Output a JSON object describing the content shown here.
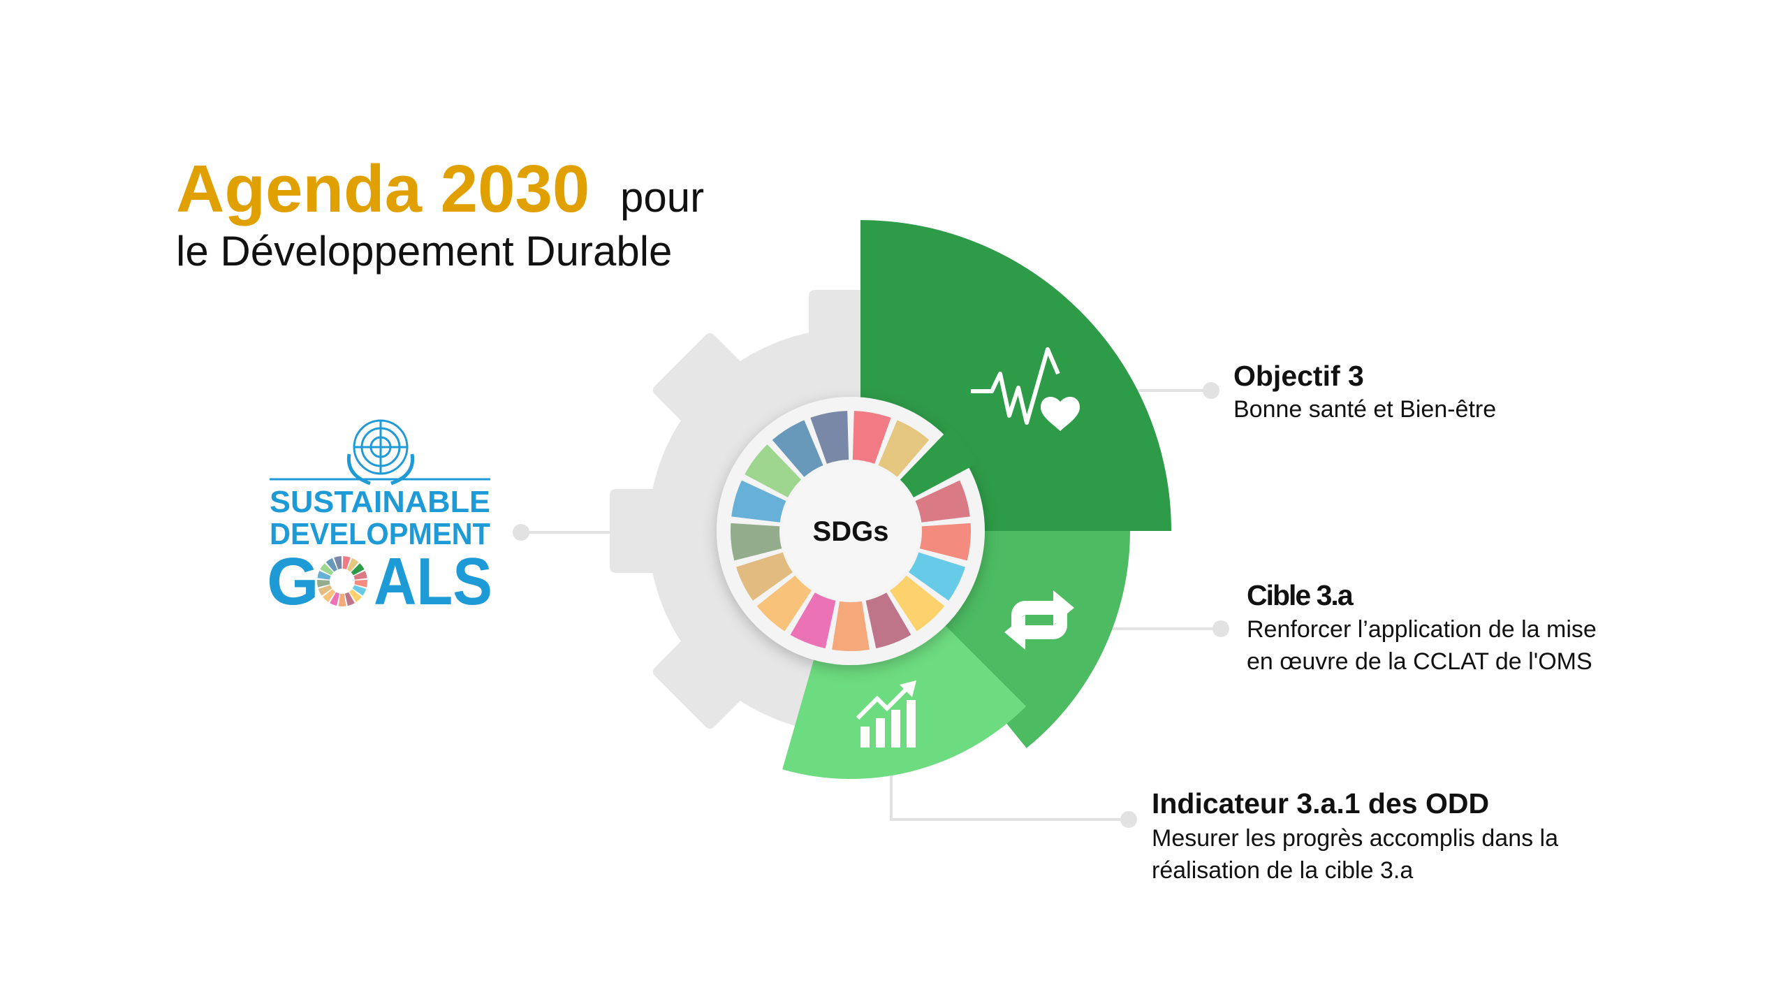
{
  "title": {
    "highlight": "Agenda 2030",
    "rest": "pour",
    "line2": "le Développement Durable"
  },
  "colors": {
    "gold": "#e0a000",
    "dark_green": "#2e9b48",
    "mid_green": "#4cbb62",
    "light_green": "#6ddb7f",
    "gear": "#e6e6e6",
    "sdg_blue": "#1e9ad6",
    "connector": "#e2e2e2"
  },
  "wheel": {
    "center_label": "SDGs",
    "highlighted_segment": 3,
    "segment_colors": [
      "#f27a84",
      "#e5c780",
      "#2e9b48",
      "#d97a84",
      "#f38b7e",
      "#67cbe8",
      "#fdd26d",
      "#bf7589",
      "#f5a97a",
      "#ec72b6",
      "#f8c27a",
      "#e2bb80",
      "#93ad8c",
      "#67b0d8",
      "#9fd68f",
      "#6899ba",
      "#7888a6"
    ]
  },
  "logo": {
    "line1": "SUSTAINABLE",
    "line2": "DEVELOPMENT",
    "line3_g": "G",
    "line3_rest": "ALS",
    "emblem": "un-emblem-icon"
  },
  "items": [
    {
      "title": "Objectif 3",
      "lines": [
        "Bonne santé et Bien-être"
      ],
      "icon": "heartbeat-icon"
    },
    {
      "title": "Cible 3.a",
      "lines": [
        "Renforcer l’application de la mise",
        "en œuvre de la CCLAT de l'OMS"
      ],
      "icon": "refresh-icon"
    },
    {
      "title": "Indicateur 3.a.1 des ODD",
      "lines": [
        "Mesurer les progrès accomplis dans la",
        "réalisation de la cible 3.a"
      ],
      "icon": "growth-chart-icon"
    }
  ]
}
